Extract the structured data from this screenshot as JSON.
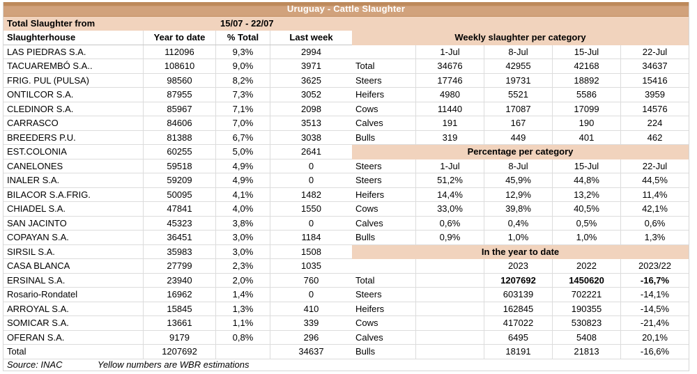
{
  "title": "Uruguay - Cattle Slaughter",
  "colors": {
    "title_bg": "#d1a27c",
    "title_bg_dark": "#bd8a5c",
    "section_bg": "#f1d3bd",
    "divider": "#000000",
    "gridline": "#dcdcdc"
  },
  "left_table": {
    "period_label": "Total Slaughter from",
    "period_value": "15/07 - 22/07",
    "columns": [
      "Slaughterhouse",
      "Year to date",
      "% Total",
      "Last week"
    ],
    "rows": [
      [
        "LAS PIEDRAS S.A.",
        "112096",
        "9,3%",
        "2994"
      ],
      [
        "TACUAREMBÓ S.A..",
        "108610",
        "9,0%",
        "3971"
      ],
      [
        "FRIG. PUL (PULSA)",
        "98560",
        "8,2%",
        "3625"
      ],
      [
        "ONTILCOR S.A.",
        "87955",
        "7,3%",
        "3052"
      ],
      [
        "CLEDINOR S.A.",
        "85967",
        "7,1%",
        "2098"
      ],
      [
        "CARRASCO",
        "84606",
        "7,0%",
        "3513"
      ],
      [
        "BREEDERS P.U.",
        "81388",
        "6,7%",
        "3038"
      ],
      [
        "EST.COLONIA",
        "60255",
        "5,0%",
        "2641"
      ],
      [
        "CANELONES",
        "59518",
        "4,9%",
        "0"
      ],
      [
        "INALER S.A.",
        "59209",
        "4,9%",
        "0"
      ],
      [
        "BILACOR S.A.FRIG.",
        "50095",
        "4,1%",
        "1482"
      ],
      [
        "CHIADEL S.A.",
        "47841",
        "4,0%",
        "1550"
      ],
      [
        "SAN JACINTO",
        "45323",
        "3,8%",
        "0"
      ],
      [
        "COPAYAN S.A.",
        "36451",
        "3,0%",
        "1184"
      ],
      [
        "SIRSIL S.A.",
        "35983",
        "3,0%",
        "1508"
      ],
      [
        "CASA BLANCA",
        "27799",
        "2,3%",
        "1035"
      ],
      [
        "ERSINAL S.A.",
        "23940",
        "2,0%",
        "760"
      ],
      [
        "Rosario-Rondatel",
        "16962",
        "1,4%",
        "0"
      ],
      [
        "ARROYAL S.A.",
        "15845",
        "1,3%",
        "410"
      ],
      [
        "SOMICAR S.A.",
        "13661",
        "1,1%",
        "339"
      ],
      [
        "OFERAN S.A.",
        "9179",
        "0,8%",
        "296"
      ]
    ],
    "total_row": [
      "Total",
      "1207692",
      "",
      "34637"
    ]
  },
  "weekly": {
    "title": "Weekly slaughter per category",
    "columns": [
      "",
      "1-Jul",
      "8-Jul",
      "15-Jul",
      "22-Jul"
    ],
    "rows": [
      [
        "Total",
        "34676",
        "42955",
        "42168",
        "34637"
      ],
      [
        "Steers",
        "17746",
        "19731",
        "18892",
        "15416"
      ],
      [
        "Heifers",
        "4980",
        "5521",
        "5586",
        "3959"
      ],
      [
        "Cows",
        "11440",
        "17087",
        "17099",
        "14576"
      ],
      [
        "Calves",
        "191",
        "167",
        "190",
        "224"
      ],
      [
        "Bulls",
        "319",
        "449",
        "401",
        "462"
      ]
    ]
  },
  "percentage": {
    "title": "Percentage per category",
    "columns": [
      "Steers",
      "1-Jul",
      "8-Jul",
      "15-Jul",
      "22-Jul"
    ],
    "rows": [
      [
        "Steers",
        "51,2%",
        "45,9%",
        "44,8%",
        "44,5%"
      ],
      [
        "Heifers",
        "14,4%",
        "12,9%",
        "13,2%",
        "11,4%"
      ],
      [
        "Cows",
        "33,0%",
        "39,8%",
        "40,5%",
        "42,1%"
      ],
      [
        "Calves",
        "0,6%",
        "0,4%",
        "0,5%",
        "0,6%"
      ],
      [
        "Bulls",
        "0,9%",
        "1,0%",
        "1,0%",
        "1,3%"
      ]
    ]
  },
  "ytd": {
    "title": "In the year to date",
    "columns": [
      "",
      "",
      "2023",
      "2022",
      "2023/22"
    ],
    "rows": [
      [
        "Total",
        "1207692",
        "1450620",
        "-16,7%"
      ],
      [
        "Steers",
        "603139",
        "702221",
        "-14,1%"
      ],
      [
        "Heifers",
        "162845",
        "190355",
        "-14,5%"
      ],
      [
        "Cows",
        "417022",
        "530823",
        "-21,4%"
      ],
      [
        "Calves",
        "6495",
        "5408",
        "20,1%"
      ],
      [
        "Bulls",
        "18191",
        "21813",
        "-16,6%"
      ]
    ],
    "bold_row_index": 0
  },
  "footer": {
    "source": "Source: INAC",
    "note": "Yellow numbers are WBR estimations"
  }
}
